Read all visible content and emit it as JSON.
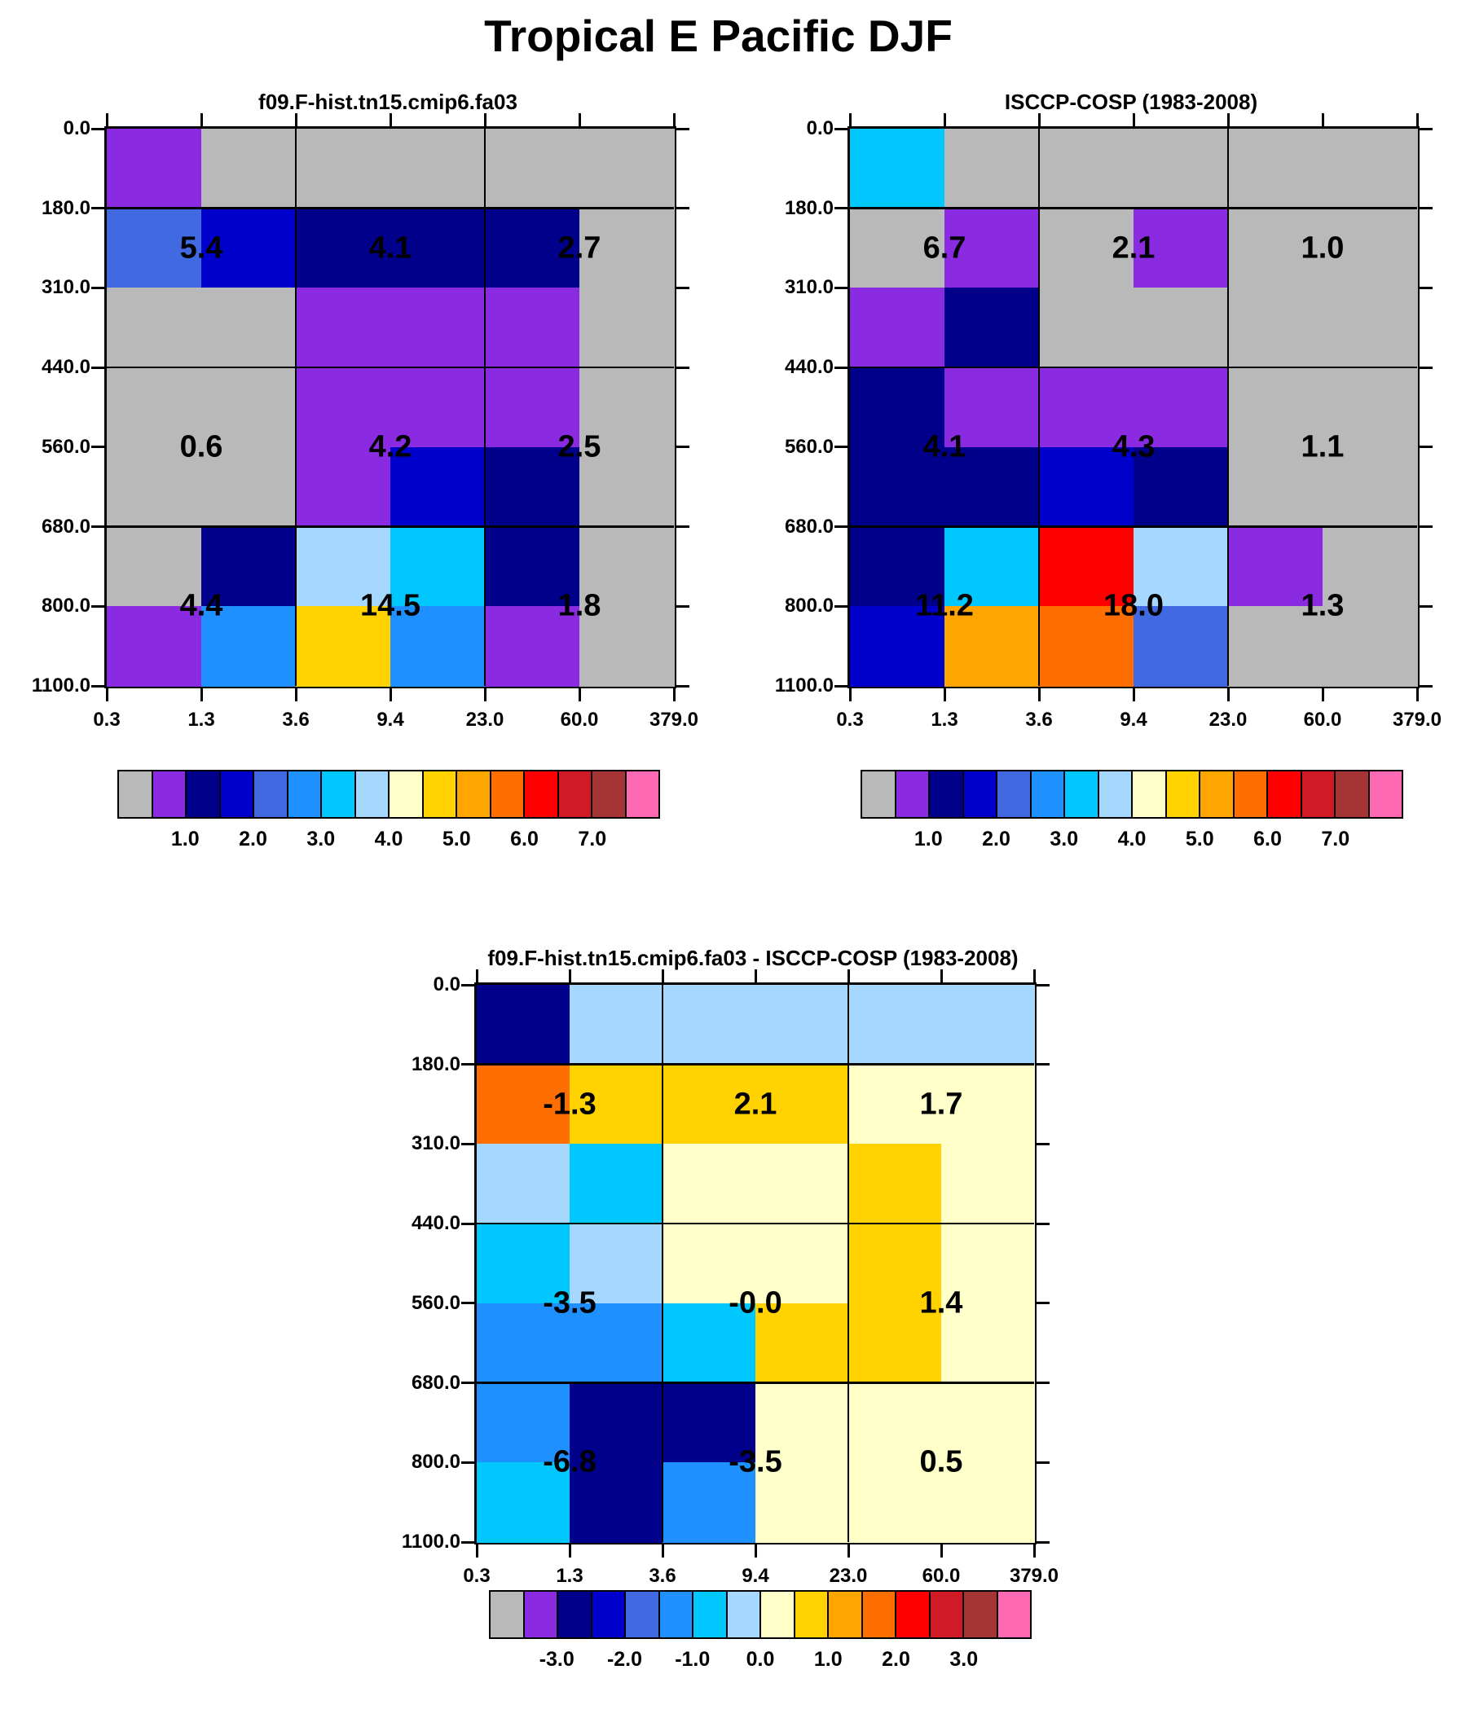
{
  "page": {
    "title": "Tropical E Pacific DJF"
  },
  "palette": {
    "order": [
      "gray",
      "violet",
      "navy",
      "blue",
      "royal",
      "dodger",
      "cyan",
      "lightblue",
      "cream",
      "gold",
      "orange",
      "darkorange",
      "red",
      "crimson",
      "brown",
      "pink"
    ],
    "colors": {
      "gray": "#b9b9b9",
      "violet": "#8a2be2",
      "navy": "#00008b",
      "blue": "#0000cd",
      "royal": "#4169e1",
      "dodger": "#1e90ff",
      "cyan": "#00c8ff",
      "lightblue": "#a6d7ff",
      "cream": "#ffffc9",
      "gold": "#ffd200",
      "orange": "#ffa500",
      "darkorange": "#ff6e00",
      "red": "#ff0000",
      "crimson": "#d01a26",
      "brown": "#a53434",
      "pink": "#ff69b4"
    }
  },
  "chart_data": [
    {
      "type": "heatmap",
      "title": "f09.F-hist.tn15.cmip6.fa03",
      "x_tick_labels": [
        "0.3",
        "1.3",
        "3.6",
        "9.4",
        "23.0",
        "60.0",
        "379.0"
      ],
      "y_tick_labels": [
        "0.0",
        "180.0",
        "310.0",
        "440.0",
        "560.0",
        "680.0",
        "800.0",
        "1100.0"
      ],
      "cells": [
        [
          "violet",
          "gray",
          "gray",
          "gray",
          "gray",
          "gray"
        ],
        [
          "royal",
          "blue",
          "navy",
          "navy",
          "navy",
          "gray"
        ],
        [
          "gray",
          "gray",
          "violet",
          "violet",
          "violet",
          "gray"
        ],
        [
          "gray",
          "gray",
          "violet",
          "violet",
          "violet",
          "gray"
        ],
        [
          "gray",
          "gray",
          "violet",
          "blue",
          "navy",
          "gray"
        ],
        [
          "gray",
          "navy",
          "lightblue",
          "cyan",
          "navy",
          "gray"
        ],
        [
          "violet",
          "dodger",
          "gold",
          "dodger",
          "violet",
          "gray"
        ]
      ],
      "annotations": [
        {
          "text": "5.4",
          "x": 0.1667,
          "y": 0.2143
        },
        {
          "text": "4.1",
          "x": 0.5,
          "y": 0.2143
        },
        {
          "text": "2.7",
          "x": 0.8333,
          "y": 0.2143
        },
        {
          "text": "0.6",
          "x": 0.1667,
          "y": 0.5714
        },
        {
          "text": "4.2",
          "x": 0.5,
          "y": 0.5714
        },
        {
          "text": "2.5",
          "x": 0.8333,
          "y": 0.5714
        },
        {
          "text": "4.4",
          "x": 0.1667,
          "y": 0.8571
        },
        {
          "text": "14.5",
          "x": 0.5,
          "y": 0.8571
        },
        {
          "text": "1.8",
          "x": 0.8333,
          "y": 0.8571
        }
      ],
      "colorbar_labels": [
        "1.0",
        "2.0",
        "3.0",
        "4.0",
        "5.0",
        "6.0",
        "7.0"
      ]
    },
    {
      "type": "heatmap",
      "title": "ISCCP-COSP (1983-2008)",
      "x_tick_labels": [
        "0.3",
        "1.3",
        "3.6",
        "9.4",
        "23.0",
        "60.0",
        "379.0"
      ],
      "y_tick_labels": [
        "0.0",
        "180.0",
        "310.0",
        "440.0",
        "560.0",
        "680.0",
        "800.0",
        "1100.0"
      ],
      "cells": [
        [
          "cyan",
          "gray",
          "gray",
          "gray",
          "gray",
          "gray"
        ],
        [
          "gray",
          "violet",
          "gray",
          "violet",
          "gray",
          "gray"
        ],
        [
          "violet",
          "navy",
          "gray",
          "gray",
          "gray",
          "gray"
        ],
        [
          "navy",
          "violet",
          "violet",
          "violet",
          "gray",
          "gray"
        ],
        [
          "navy",
          "navy",
          "blue",
          "navy",
          "gray",
          "gray"
        ],
        [
          "navy",
          "cyan",
          "red",
          "lightblue",
          "violet",
          "gray"
        ],
        [
          "blue",
          "orange",
          "darkorange",
          "royal",
          "gray",
          "gray"
        ]
      ],
      "annotations": [
        {
          "text": "6.7",
          "x": 0.1667,
          "y": 0.2143
        },
        {
          "text": "2.1",
          "x": 0.5,
          "y": 0.2143
        },
        {
          "text": "1.0",
          "x": 0.8333,
          "y": 0.2143
        },
        {
          "text": "4.1",
          "x": 0.1667,
          "y": 0.5714
        },
        {
          "text": "4.3",
          "x": 0.5,
          "y": 0.5714
        },
        {
          "text": "1.1",
          "x": 0.8333,
          "y": 0.5714
        },
        {
          "text": "11.2",
          "x": 0.1667,
          "y": 0.8571
        },
        {
          "text": "18.0",
          "x": 0.5,
          "y": 0.8571
        },
        {
          "text": "1.3",
          "x": 0.8333,
          "y": 0.8571
        }
      ],
      "colorbar_labels": [
        "1.0",
        "2.0",
        "3.0",
        "4.0",
        "5.0",
        "6.0",
        "7.0"
      ]
    },
    {
      "type": "heatmap",
      "title": "f09.F-hist.tn15.cmip6.fa03 - ISCCP-COSP (1983-2008)",
      "x_tick_labels": [
        "0.3",
        "1.3",
        "3.6",
        "9.4",
        "23.0",
        "60.0",
        "379.0"
      ],
      "y_tick_labels": [
        "0.0",
        "180.0",
        "310.0",
        "440.0",
        "560.0",
        "680.0",
        "800.0",
        "1100.0"
      ],
      "cells": [
        [
          "navy",
          "lightblue",
          "lightblue",
          "lightblue",
          "lightblue",
          "lightblue"
        ],
        [
          "darkorange",
          "gold",
          "gold",
          "gold",
          "cream",
          "cream"
        ],
        [
          "lightblue",
          "cyan",
          "cream",
          "cream",
          "gold",
          "cream"
        ],
        [
          "cyan",
          "lightblue",
          "cream",
          "cream",
          "gold",
          "cream"
        ],
        [
          "dodger",
          "dodger",
          "cyan",
          "gold",
          "gold",
          "cream"
        ],
        [
          "dodger",
          "navy",
          "navy",
          "cream",
          "cream",
          "cream"
        ],
        [
          "cyan",
          "navy",
          "dodger",
          "cream",
          "cream",
          "cream"
        ]
      ],
      "annotations": [
        {
          "text": "-1.3",
          "x": 0.1667,
          "y": 0.2143
        },
        {
          "text": "2.1",
          "x": 0.5,
          "y": 0.2143
        },
        {
          "text": "1.7",
          "x": 0.8333,
          "y": 0.2143
        },
        {
          "text": "-3.5",
          "x": 0.1667,
          "y": 0.5714
        },
        {
          "text": "-0.0",
          "x": 0.5,
          "y": 0.5714
        },
        {
          "text": "1.4",
          "x": 0.8333,
          "y": 0.5714
        },
        {
          "text": "-6.8",
          "x": 0.1667,
          "y": 0.8571
        },
        {
          "text": "-3.5",
          "x": 0.5,
          "y": 0.8571
        },
        {
          "text": "0.5",
          "x": 0.8333,
          "y": 0.8571
        }
      ],
      "colorbar_labels": [
        "-3.0",
        "-2.0",
        "-1.0",
        "0.0",
        "1.0",
        "2.0",
        "3.0"
      ]
    }
  ]
}
